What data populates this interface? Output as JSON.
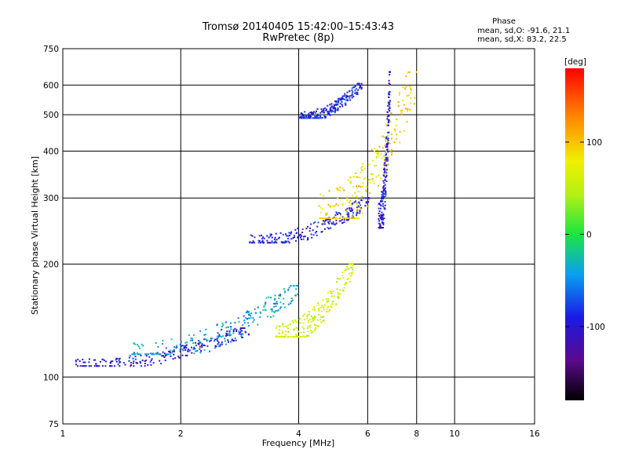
{
  "chart_data": {
    "type": "scatter",
    "title": "Tromsø 20140405 15:42:00–15:43:43",
    "subtitle": "RwPretec (8p)",
    "xlabel": "Frequency [MHz]",
    "ylabel": "Stationary phase Virtual Height [km]",
    "xscale": "log",
    "yscale": "log",
    "xlim": [
      1,
      16
    ],
    "ylim": [
      75,
      750
    ],
    "xticks": [
      1,
      2,
      4,
      6,
      8,
      10,
      16
    ],
    "yticks": [
      75,
      100,
      200,
      300,
      400,
      500,
      600,
      750
    ],
    "grid": true,
    "phase_header": {
      "title": "Phase",
      "line_o": "mean, sd,O: -91.6, 21.1",
      "line_x": "mean, sd,X:  83.2, 22.5"
    },
    "colorbar": {
      "label": "[deg]",
      "range": [
        -180,
        180
      ],
      "ticks": [
        100,
        0,
        -100
      ],
      "tick_labels": [
        "100",
        "0",
        "-100"
      ]
    },
    "traces": [
      {
        "name": "",
        "x_range": [
          1.08,
          3.0
        ],
        "y_range": [
          107,
          135
        ],
        "phase": -100
      },
      {
        "name": "",
        "x_range": [
          1.5,
          4.0
        ],
        "y_range": [
          115,
          175
        ],
        "phase": -40
      },
      {
        "name": "",
        "x_range": [
          3.0,
          6.1
        ],
        "y_range": [
          228,
          300
        ],
        "phase": -95
      },
      {
        "name": "",
        "x_range": [
          4.0,
          5.8
        ],
        "y_range": [
          490,
          605
        ],
        "phase": -90
      },
      {
        "name": "",
        "x_range": [
          6.4,
          6.85
        ],
        "y_range": [
          250,
          650
        ],
        "phase": -100
      },
      {
        "name": "",
        "x_range": [
          4.5,
          8.0
        ],
        "y_range": [
          265,
          650
        ],
        "phase": 90
      },
      {
        "name": "",
        "x_range": [
          3.5,
          5.5
        ],
        "y_range": [
          128,
          200
        ],
        "phase": 60
      }
    ]
  }
}
